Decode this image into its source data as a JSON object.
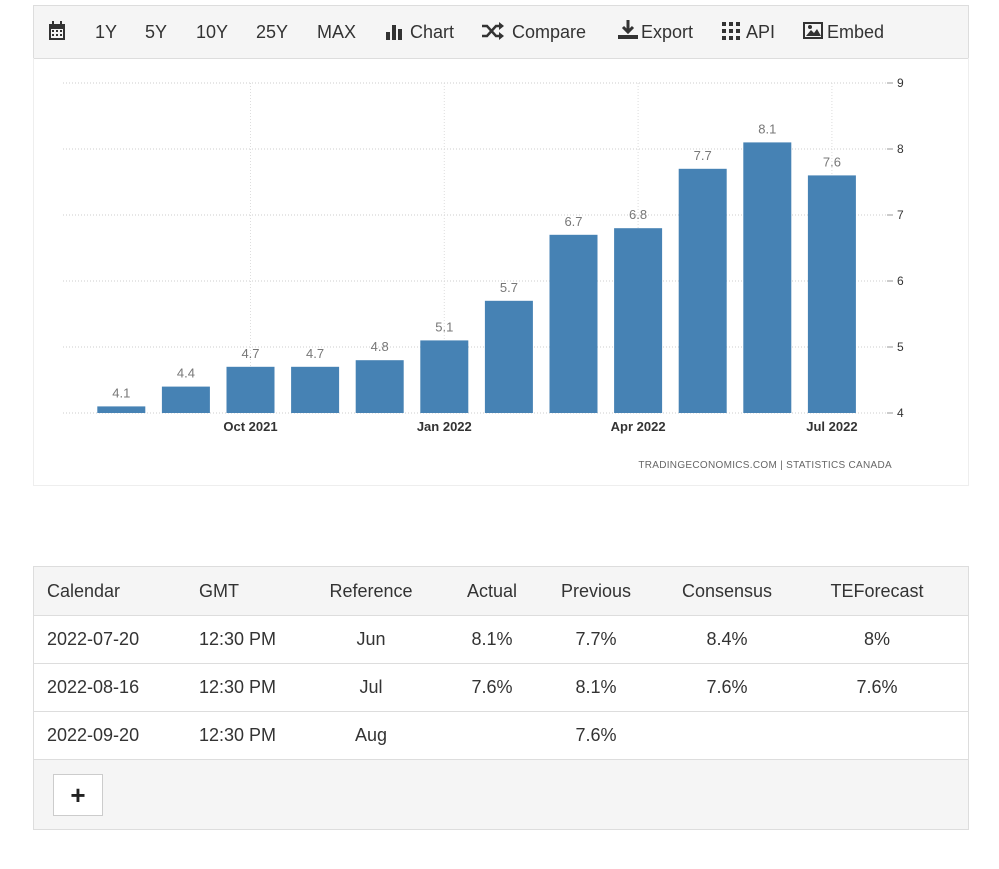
{
  "toolbar": {
    "items": [
      "1Y",
      "5Y",
      "10Y",
      "25Y",
      "MAX",
      "Chart",
      "Compare",
      "Export",
      "API",
      "Embed"
    ]
  },
  "chart_data": {
    "type": "bar",
    "categories": [
      null,
      null,
      "Oct 2021",
      null,
      null,
      "Jan 2022",
      null,
      null,
      "Apr 2022",
      null,
      null,
      "Jul 2022"
    ],
    "values": [
      4.1,
      4.4,
      4.7,
      4.7,
      4.8,
      5.1,
      5.7,
      6.7,
      6.8,
      7.7,
      8.1,
      7.6
    ],
    "color": "#4682b4",
    "ylim": [
      4,
      9
    ],
    "yticks": [
      4,
      5,
      6,
      7,
      8,
      9
    ],
    "y_axis_side": "right",
    "grid": true,
    "source": "TRADINGECONOMICS.COM | STATISTICS CANADA"
  },
  "table": {
    "header": [
      "Calendar",
      "GMT",
      "Reference",
      "Actual",
      "Previous",
      "Consensus",
      "TEForecast"
    ],
    "rows": [
      {
        "date": "2022-07-20",
        "time": "12:30 PM",
        "reference": "Jun",
        "actual": "8.1%",
        "previous": "7.7%",
        "consensus": "8.4%",
        "teforecast": "8%"
      },
      {
        "date": "2022-08-16",
        "time": "12:30 PM",
        "reference": "Jul",
        "actual": "7.6%",
        "previous": "8.1%",
        "consensus": "7.6%",
        "teforecast": "7.6%"
      },
      {
        "date": "2022-09-20",
        "time": "12:30 PM",
        "reference": "Aug",
        "previous": "7.6%"
      }
    ],
    "button": "+"
  }
}
